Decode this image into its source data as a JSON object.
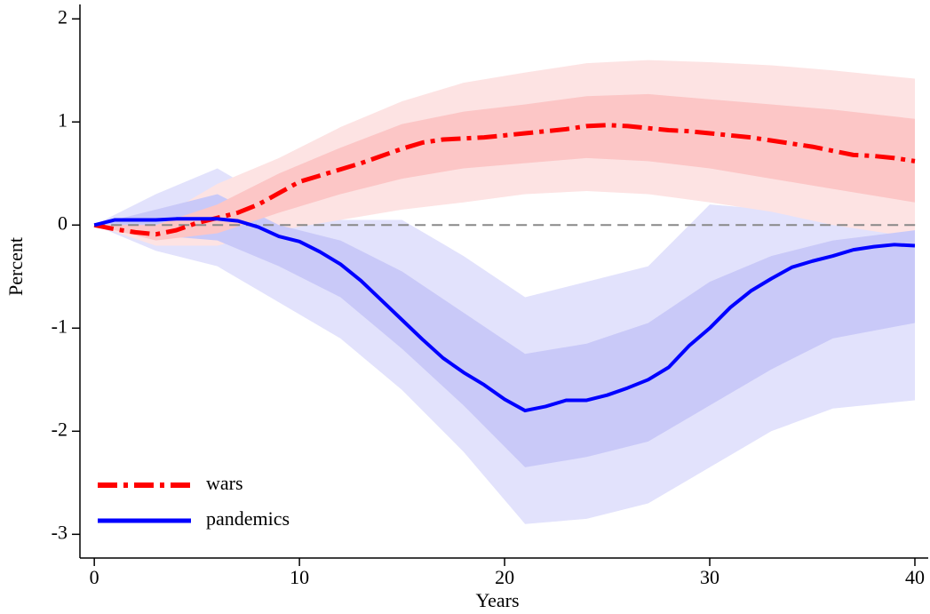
{
  "chart_data": {
    "type": "line",
    "x_label": "Years",
    "y_label": "Percent",
    "x": [
      0,
      1,
      2,
      3,
      4,
      5,
      6,
      7,
      8,
      9,
      10,
      11,
      12,
      13,
      14,
      15,
      16,
      17,
      18,
      19,
      20,
      21,
      22,
      23,
      24,
      25,
      26,
      27,
      28,
      29,
      30,
      31,
      32,
      33,
      34,
      35,
      36,
      37,
      38,
      39,
      40
    ],
    "series": [
      {
        "name": "wars",
        "color": "#ff0000",
        "dash": "dash-dot",
        "values": [
          0,
          -0.04,
          -0.07,
          -0.09,
          -0.05,
          0.02,
          0.07,
          0.12,
          0.2,
          0.31,
          0.42,
          0.48,
          0.54,
          0.6,
          0.67,
          0.74,
          0.8,
          0.83,
          0.84,
          0.85,
          0.87,
          0.89,
          0.91,
          0.93,
          0.96,
          0.97,
          0.96,
          0.94,
          0.92,
          0.91,
          0.89,
          0.87,
          0.85,
          0.82,
          0.79,
          0.76,
          0.72,
          0.68,
          0.67,
          0.65,
          0.62
        ]
      },
      {
        "name": "pandemics",
        "color": "#0000ff",
        "dash": "solid",
        "values": [
          0,
          0.05,
          0.05,
          0.05,
          0.06,
          0.06,
          0.06,
          0.04,
          -0.02,
          -0.11,
          -0.16,
          -0.26,
          -0.38,
          -0.54,
          -0.73,
          -0.92,
          -1.11,
          -1.29,
          -1.43,
          -1.55,
          -1.69,
          -1.8,
          -1.76,
          -1.7,
          -1.7,
          -1.65,
          -1.58,
          -1.5,
          -1.38,
          -1.17,
          -1.0,
          -0.8,
          -0.64,
          -0.52,
          -0.41,
          -0.35,
          -0.3,
          -0.24,
          -0.21,
          -0.19,
          -0.2
        ]
      }
    ],
    "bands": [
      {
        "color": "#e2e2fc",
        "x": [
          0,
          3,
          6,
          9,
          12,
          15,
          18,
          21,
          24,
          27,
          30,
          33,
          36,
          40
        ],
        "upper": [
          0,
          0.3,
          0.55,
          0.2,
          0.05,
          0.05,
          -0.3,
          -0.7,
          -0.55,
          -0.4,
          0.2,
          0.15,
          0.05,
          0
        ],
        "lower": [
          0,
          -0.25,
          -0.4,
          -0.75,
          -1.1,
          -1.6,
          -2.2,
          -2.9,
          -2.85,
          -2.7,
          -2.35,
          -2.0,
          -1.78,
          -1.7
        ]
      },
      {
        "color": "#fde3e3",
        "x": [
          0,
          3,
          6,
          9,
          12,
          15,
          18,
          21,
          24,
          27,
          30,
          33,
          36,
          40
        ],
        "upper": [
          0,
          0.05,
          0.4,
          0.65,
          0.95,
          1.2,
          1.38,
          1.48,
          1.57,
          1.6,
          1.58,
          1.55,
          1.5,
          1.42
        ],
        "lower": [
          0,
          -0.2,
          -0.2,
          -0.05,
          0.05,
          0.15,
          0.22,
          0.3,
          0.33,
          0.3,
          0.22,
          0.13,
          0,
          -0.12
        ]
      },
      {
        "color": "#c9c9f8",
        "x": [
          0,
          3,
          6,
          9,
          12,
          15,
          18,
          21,
          24,
          27,
          30,
          33,
          36,
          40
        ],
        "upper": [
          0,
          0.15,
          0.3,
          0,
          -0.15,
          -0.45,
          -0.85,
          -1.25,
          -1.15,
          -0.95,
          -0.55,
          -0.3,
          -0.15,
          -0.05
        ],
        "lower": [
          0,
          -0.1,
          -0.15,
          -0.4,
          -0.7,
          -1.2,
          -1.75,
          -2.35,
          -2.25,
          -2.1,
          -1.75,
          -1.4,
          -1.1,
          -0.95
        ]
      },
      {
        "color": "#fcc6c6",
        "x": [
          0,
          3,
          6,
          9,
          12,
          15,
          18,
          21,
          24,
          27,
          30,
          33,
          36,
          40
        ],
        "upper": [
          0,
          0,
          0.2,
          0.5,
          0.75,
          0.98,
          1.1,
          1.17,
          1.25,
          1.27,
          1.22,
          1.17,
          1.12,
          1.03
        ],
        "lower": [
          0,
          -0.15,
          -0.08,
          0.12,
          0.3,
          0.45,
          0.55,
          0.6,
          0.65,
          0.62,
          0.55,
          0.45,
          0.35,
          0.22
        ]
      }
    ],
    "reference_line": 0,
    "xlim": [
      -0.7,
      40.65
    ],
    "ylim": [
      -3.23,
      2.14
    ],
    "xticks": [
      0,
      10,
      20,
      30,
      40
    ],
    "yticks": [
      -3,
      -2,
      -1,
      0,
      1,
      2
    ],
    "grid": false,
    "legend": "lower left"
  }
}
